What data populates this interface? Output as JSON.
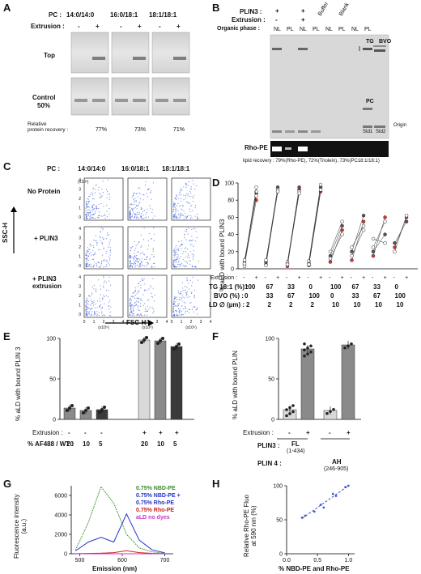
{
  "panels": {
    "A": "A",
    "B": "B",
    "C": "C",
    "D": "D",
    "E": "E",
    "F": "F",
    "G": "G",
    "H": "H"
  },
  "A": {
    "pc_label": "PC :",
    "lipids": [
      "14:0/14:0",
      "16:0/18:1",
      "18:1/18:1"
    ],
    "extrusion_label": "Extrusion :",
    "minus": "-",
    "plus": "+",
    "top_label": "Top",
    "control_label": "Control",
    "control_pct": "50%",
    "recovery_label": "Relative\nprotein recovery :",
    "recovery_values": [
      "77%",
      "73%",
      "71%"
    ]
  },
  "B": {
    "plin3_label": "PLIN3 :",
    "extrusion_label": "Extrusion :",
    "plus": "+",
    "minus": "-",
    "buffer_label": "Buffer",
    "blank_label": "Blank",
    "organic_label": "Organic phase :",
    "phases": [
      "NL",
      "PL",
      "NL",
      "PL",
      "NL",
      "PL",
      "NL",
      "PL"
    ],
    "tg_label": "TG",
    "bvo_label": "BVO",
    "pc_label": "PC",
    "origin_label": "Origin",
    "std1": "Std1",
    "std2": "Std2",
    "rho_label": "Rho-PE",
    "recovery_label": "Relative",
    "recovery_text": "lipid recovery : 79%(Rho-PE), 72%(Triolein), 73%(PC18:1/18:1)"
  },
  "C": {
    "pc_label": "PC :",
    "lipids": [
      "14:0/14:0",
      "16:0/18:1",
      "18:1/18:1"
    ],
    "rows": [
      "No Protein",
      "+ PLIN3",
      "+ PLIN3\nextrusion"
    ],
    "y_axis": "SSC-H",
    "x_axis": "FSC-H",
    "x_ticks": [
      "0",
      "1",
      "2",
      "3",
      "4"
    ],
    "y_ticks": [
      "4",
      "3",
      "2",
      "1",
      "0"
    ],
    "x_unit": "(x10⁵)",
    "y_unit": "(x10⁵)"
  },
  "D": {
    "ylabel": "% aLD with bound PLIN3",
    "y_ticks": [
      "0",
      "20",
      "40",
      "60",
      "80",
      "100"
    ],
    "extrusion_label": "Extrusion :",
    "tg_label": "TG 18:1 (%) :",
    "bvo_label": "BVO (%) :",
    "ld_label": "LD ∅ (µm) :",
    "groups": [
      {
        "tg": "100",
        "bvo": "0",
        "ld": "2"
      },
      {
        "tg": "67",
        "bvo": "33",
        "ld": "2"
      },
      {
        "tg": "33",
        "bvo": "67",
        "ld": "2"
      },
      {
        "tg": "0",
        "bvo": "100",
        "ld": "2"
      },
      {
        "tg": "100",
        "bvo": "0",
        "ld": "10"
      },
      {
        "tg": "67",
        "bvo": "33",
        "ld": "10"
      },
      {
        "tg": "33",
        "bvo": "67",
        "ld": "10"
      },
      {
        "tg": "0",
        "bvo": "100",
        "ld": "10"
      }
    ],
    "minus": "-",
    "plus": "+"
  },
  "E": {
    "ylabel": "% aLD with bound PLIN 3",
    "y_ticks": [
      "0",
      "50",
      "100"
    ],
    "extrusion_label": "Extrusion :",
    "ratio_label": "% AF488 / WT :",
    "extrusion_values": [
      "-",
      "-",
      "-",
      "+",
      "+",
      "+"
    ],
    "ratio_values": [
      "20",
      "10",
      "5",
      "20",
      "10",
      "5"
    ]
  },
  "F": {
    "ylabel": "% aLD with bound PLIN",
    "y_ticks": [
      "0",
      "50",
      "100"
    ],
    "extrusion_label": "Extrusion :",
    "extrusion_values": [
      "-",
      "+",
      "-",
      "+"
    ],
    "plin3_label": "PLIN3 :",
    "plin3_name": "FL",
    "plin3_range": "(1-434)",
    "plin4_label": "PLIN 4 :",
    "plin4_name": "AH",
    "plin4_range": "(246-905)"
  },
  "G": {
    "ylabel": "Fluorescence intensity\n(a.u.)",
    "xlabel": "Emission (nm)",
    "x_ticks": [
      "500",
      "600",
      "700"
    ],
    "y_ticks": [
      "0",
      "2000",
      "4000",
      "6000"
    ],
    "legend": [
      {
        "text": "0.75% NBD-PE",
        "color": "#3a8a2e"
      },
      {
        "text": "0.75% NBD-PE +",
        "color": "#2233cc"
      },
      {
        "text": "0.75% Rho-PE",
        "color": "#2233cc"
      },
      {
        "text": "0.75% Rho-PE",
        "color": "#d02020"
      },
      {
        "text": "aLD no dyes",
        "color": "#cc33cc"
      }
    ]
  },
  "H": {
    "ylabel": "Relative Rho-PE Fluo\nat 590 nm (%)",
    "xlabel": "% NBD-PE and Rho-PE",
    "x_ticks": [
      "0.0",
      "0.5",
      "1.0"
    ],
    "y_ticks": [
      "0",
      "50",
      "100"
    ]
  },
  "colors": {
    "bar_light": "#d9d9d9",
    "bar_mid": "#8a8a8a",
    "bar_dark": "#3a3a3a",
    "red": "#e03030",
    "blue_pt": "#3355dd"
  },
  "chart_data": [
    {
      "type": "bar",
      "panel": "E",
      "categories": [
        "20",
        "10",
        "5",
        "20",
        "10",
        "5"
      ],
      "values": [
        14,
        11,
        12,
        98,
        97,
        90
      ],
      "ylim": [
        0,
        100
      ]
    },
    {
      "type": "bar",
      "panel": "F",
      "categories": [
        "FL -",
        "FL +",
        "AH -",
        "AH +"
      ],
      "values": [
        12,
        87,
        11,
        92
      ],
      "ylim": [
        0,
        100
      ]
    },
    {
      "type": "line",
      "panel": "G",
      "x": [
        490,
        520,
        550,
        580,
        610,
        640,
        670,
        700
      ],
      "series": [
        {
          "name": "0.75% NBD-PE",
          "values": [
            400,
            3200,
            6900,
            5200,
            2000,
            600,
            200,
            50
          ]
        },
        {
          "name": "0.75% NBD-PE + 0.75% Rho-PE",
          "values": [
            300,
            1200,
            1700,
            1200,
            4100,
            1400,
            400,
            100
          ]
        },
        {
          "name": "0.75% Rho-PE",
          "values": [
            10,
            30,
            60,
            120,
            320,
            120,
            40,
            10
          ]
        },
        {
          "name": "aLD no dyes",
          "values": [
            0,
            0,
            0,
            0,
            0,
            0,
            0,
            0
          ]
        }
      ],
      "ylim": [
        0,
        7000
      ],
      "xlim": [
        480,
        720
      ]
    },
    {
      "type": "scatter",
      "panel": "H",
      "x": [
        0.25,
        0.3,
        0.45,
        0.55,
        0.6,
        0.75,
        0.8,
        0.95,
        1.0
      ],
      "values": [
        53,
        56,
        62,
        72,
        68,
        88,
        85,
        98,
        100
      ],
      "xlim": [
        0,
        1.1
      ],
      "ylim": [
        0,
        100
      ]
    }
  ]
}
